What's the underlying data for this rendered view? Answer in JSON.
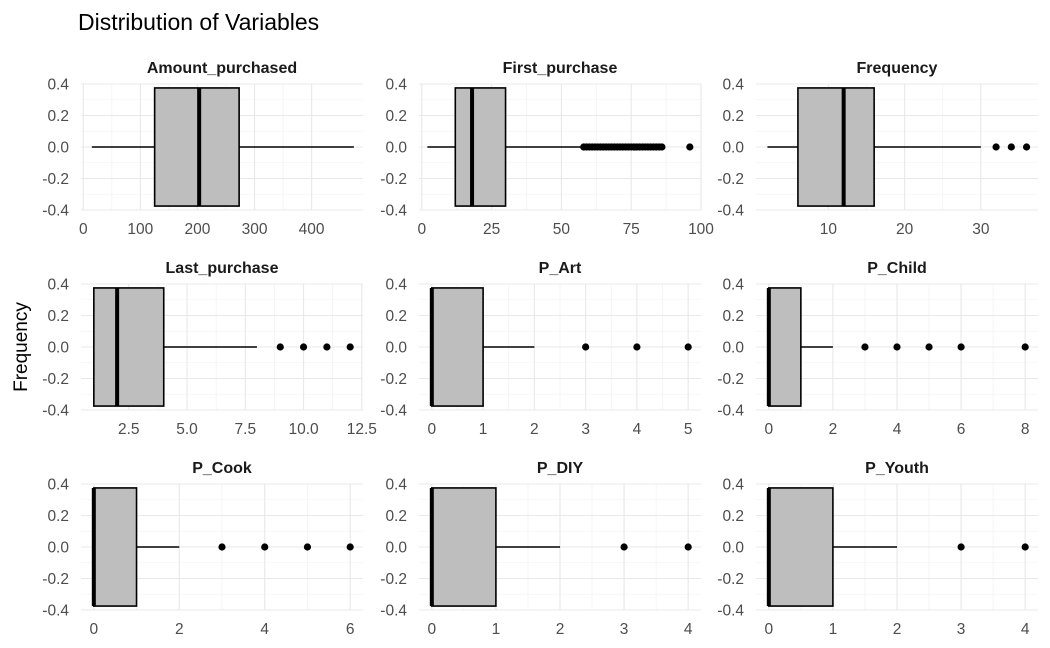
{
  "title": "Distribution of Variables",
  "ylabel": "Frequency",
  "chart_data": {
    "type": "boxplot",
    "title": "Distribution of Variables",
    "ylabel": "Frequency",
    "facet_grid": "3x3",
    "box_fill": "#bebebe",
    "y_axis": {
      "range": [
        -0.4,
        0.4
      ],
      "ticks": [
        "0.4",
        "0.2",
        "0.0",
        "-0.2",
        "-0.4"
      ],
      "values": [
        0.4,
        0.2,
        0.0,
        -0.2,
        -0.4
      ],
      "box_half_height": 0.375
    },
    "panels": [
      {
        "name": "Amount_purchased",
        "xlim": [
          -4,
          490
        ],
        "xticks": [
          0,
          100,
          200,
          300,
          400
        ],
        "xtick_labels": [
          "0",
          "100",
          "200",
          "300",
          "400"
        ],
        "whisker_low": 15,
        "q1": 125,
        "median": 203,
        "q3": 273,
        "whisker_high": 474,
        "outliers": []
      },
      {
        "name": "First_purchase",
        "xlim": [
          -1,
          100
        ],
        "xticks": [
          0,
          25,
          50,
          75,
          100
        ],
        "xtick_labels": [
          "0",
          "25",
          "50",
          "75",
          "100"
        ],
        "whisker_low": 2,
        "q1": 12,
        "median": 18,
        "q3": 30,
        "whisker_high": 58,
        "outliers": [
          58,
          59,
          60,
          61,
          62,
          63,
          64,
          65,
          66,
          67,
          68,
          69,
          70,
          71,
          72,
          73,
          74,
          75,
          76,
          77,
          78,
          79,
          80,
          81,
          82,
          83,
          84,
          85,
          86,
          96
        ]
      },
      {
        "name": "Frequency",
        "xlim": [
          0.5,
          37.5
        ],
        "xticks": [
          10,
          20,
          30
        ],
        "xtick_labels": [
          "10",
          "20",
          "30"
        ],
        "whisker_low": 2,
        "q1": 6,
        "median": 12,
        "q3": 16,
        "whisker_high": 30,
        "outliers": [
          32,
          34,
          36
        ]
      },
      {
        "name": "Last_purchase",
        "xlim": [
          0.45,
          12.55
        ],
        "xticks": [
          2.5,
          5,
          7.5,
          10,
          12.5
        ],
        "xtick_labels": [
          "2.5",
          "5.0",
          "7.5",
          "10.0",
          "12.5"
        ],
        "whisker_low": 1,
        "q1": 1,
        "median": 2,
        "q3": 4,
        "whisker_high": 8,
        "outliers": [
          9,
          10,
          11,
          12
        ]
      },
      {
        "name": "P_Art",
        "xlim": [
          -0.25,
          5.25
        ],
        "xticks": [
          0,
          1,
          2,
          3,
          4,
          5
        ],
        "xtick_labels": [
          "0",
          "1",
          "2",
          "3",
          "4",
          "5"
        ],
        "whisker_low": 0,
        "q1": 0,
        "median": 0,
        "q3": 1,
        "whisker_high": 2,
        "outliers": [
          3,
          4,
          5
        ]
      },
      {
        "name": "P_Child",
        "xlim": [
          -0.4,
          8.4
        ],
        "xticks": [
          0,
          2,
          4,
          6,
          8
        ],
        "xtick_labels": [
          "0",
          "2",
          "4",
          "6",
          "8"
        ],
        "whisker_low": 0,
        "q1": 0,
        "median": 0,
        "q3": 1,
        "whisker_high": 2,
        "outliers": [
          3,
          4,
          5,
          6,
          8
        ]
      },
      {
        "name": "P_Cook",
        "xlim": [
          -0.3,
          6.3
        ],
        "xticks": [
          0,
          2,
          4,
          6
        ],
        "xtick_labels": [
          "0",
          "2",
          "4",
          "6"
        ],
        "whisker_low": 0,
        "q1": 0,
        "median": 0,
        "q3": 1,
        "whisker_high": 2,
        "outliers": [
          3,
          4,
          5,
          6
        ]
      },
      {
        "name": "P_DIY",
        "xlim": [
          -0.2,
          4.2
        ],
        "xticks": [
          0,
          1,
          2,
          3,
          4
        ],
        "xtick_labels": [
          "0",
          "1",
          "2",
          "3",
          "4"
        ],
        "whisker_low": 0,
        "q1": 0,
        "median": 0,
        "q3": 1,
        "whisker_high": 2,
        "outliers": [
          3,
          4
        ]
      },
      {
        "name": "P_Youth",
        "xlim": [
          -0.2,
          4.2
        ],
        "xticks": [
          0,
          1,
          2,
          3,
          4
        ],
        "xtick_labels": [
          "0",
          "1",
          "2",
          "3",
          "4"
        ],
        "whisker_low": 0,
        "q1": 0,
        "median": 0,
        "q3": 1,
        "whisker_high": 2,
        "outliers": [
          3,
          4
        ]
      }
    ]
  }
}
